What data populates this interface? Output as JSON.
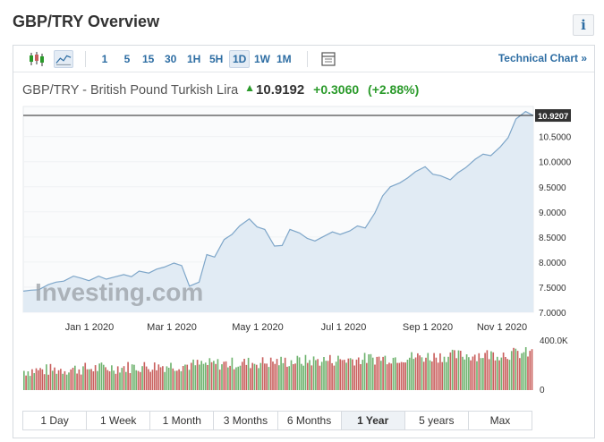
{
  "header": {
    "title": "GBP/TRY Overview",
    "info_label": "i"
  },
  "toolbar": {
    "chart_type_icons": [
      "candlestick-icon",
      "area-chart-icon"
    ],
    "intervals": [
      "1",
      "5",
      "15",
      "30",
      "1H",
      "5H",
      "1D",
      "1W",
      "1M"
    ],
    "active_interval": "1D",
    "settings_icon": "table-icon",
    "technical_chart_label": "Technical Chart »"
  },
  "quote": {
    "name": "GBP/TRY - British Pound Turkish Lira",
    "price": "10.9192",
    "direction_icon": "up-arrow-icon",
    "change": "+0.3060",
    "change_pct": "(+2.88%)"
  },
  "colors": {
    "accent": "#2d6da3",
    "positive": "#2a9a2a",
    "area_fill": "#e1ebf4",
    "line": "#7ea6c9",
    "volume_up": "#6fb36f",
    "volume_down": "#c9605e",
    "last_label_bg": "#333333"
  },
  "chart_data": {
    "type": "area",
    "watermark": "Investing.com",
    "x_ticks": [
      "Jan 1 2020",
      "Mar 1 2020",
      "May 1 2020",
      "Jul 1 2020",
      "Sep 1 2020",
      "Nov 1 2020"
    ],
    "y_ticks": [
      "7.0000",
      "7.5000",
      "8.0000",
      "8.5000",
      "9.0000",
      "9.5000",
      "10.0000",
      "10.5000"
    ],
    "ylim": [
      7.0,
      11.1
    ],
    "last_value_label": "10.9207",
    "last_value": 10.9207,
    "series": {
      "x_index": [
        0,
        4,
        8,
        13,
        17,
        21,
        26,
        30,
        34,
        39,
        43,
        47,
        52,
        56,
        60,
        65,
        69,
        73,
        78,
        82,
        86,
        91,
        95,
        99,
        104,
        108,
        112,
        117,
        121,
        125,
        130,
        134,
        138,
        143,
        147,
        151,
        156,
        160,
        164,
        169,
        173,
        177,
        182,
        186,
        190,
        195,
        199,
        203,
        208,
        212,
        216,
        221,
        225,
        229,
        234,
        238,
        242,
        247,
        251,
        255,
        260,
        264
      ],
      "y": [
        7.42,
        7.44,
        7.45,
        7.55,
        7.6,
        7.62,
        7.72,
        7.68,
        7.63,
        7.72,
        7.66,
        7.7,
        7.75,
        7.71,
        7.82,
        7.78,
        7.86,
        7.9,
        7.98,
        7.93,
        7.52,
        7.6,
        8.15,
        8.1,
        8.45,
        8.55,
        8.72,
        8.86,
        8.7,
        8.65,
        8.32,
        8.33,
        8.65,
        8.58,
        8.47,
        8.42,
        8.52,
        8.6,
        8.55,
        8.62,
        8.72,
        8.68,
        8.98,
        9.32,
        9.5,
        9.58,
        9.68,
        9.8,
        9.9,
        9.75,
        9.72,
        9.64,
        9.78,
        9.88,
        10.05,
        10.15,
        10.12,
        10.3,
        10.48,
        10.85,
        11.0,
        10.92
      ],
      "x_max": 264
    },
    "volume": {
      "label_top": "400.0K",
      "label_bottom": "0",
      "max": 400000
    }
  },
  "ranges": {
    "items": [
      "1 Day",
      "1 Week",
      "1 Month",
      "3 Months",
      "6 Months",
      "1 Year",
      "5 years",
      "Max"
    ],
    "active": "1 Year"
  }
}
